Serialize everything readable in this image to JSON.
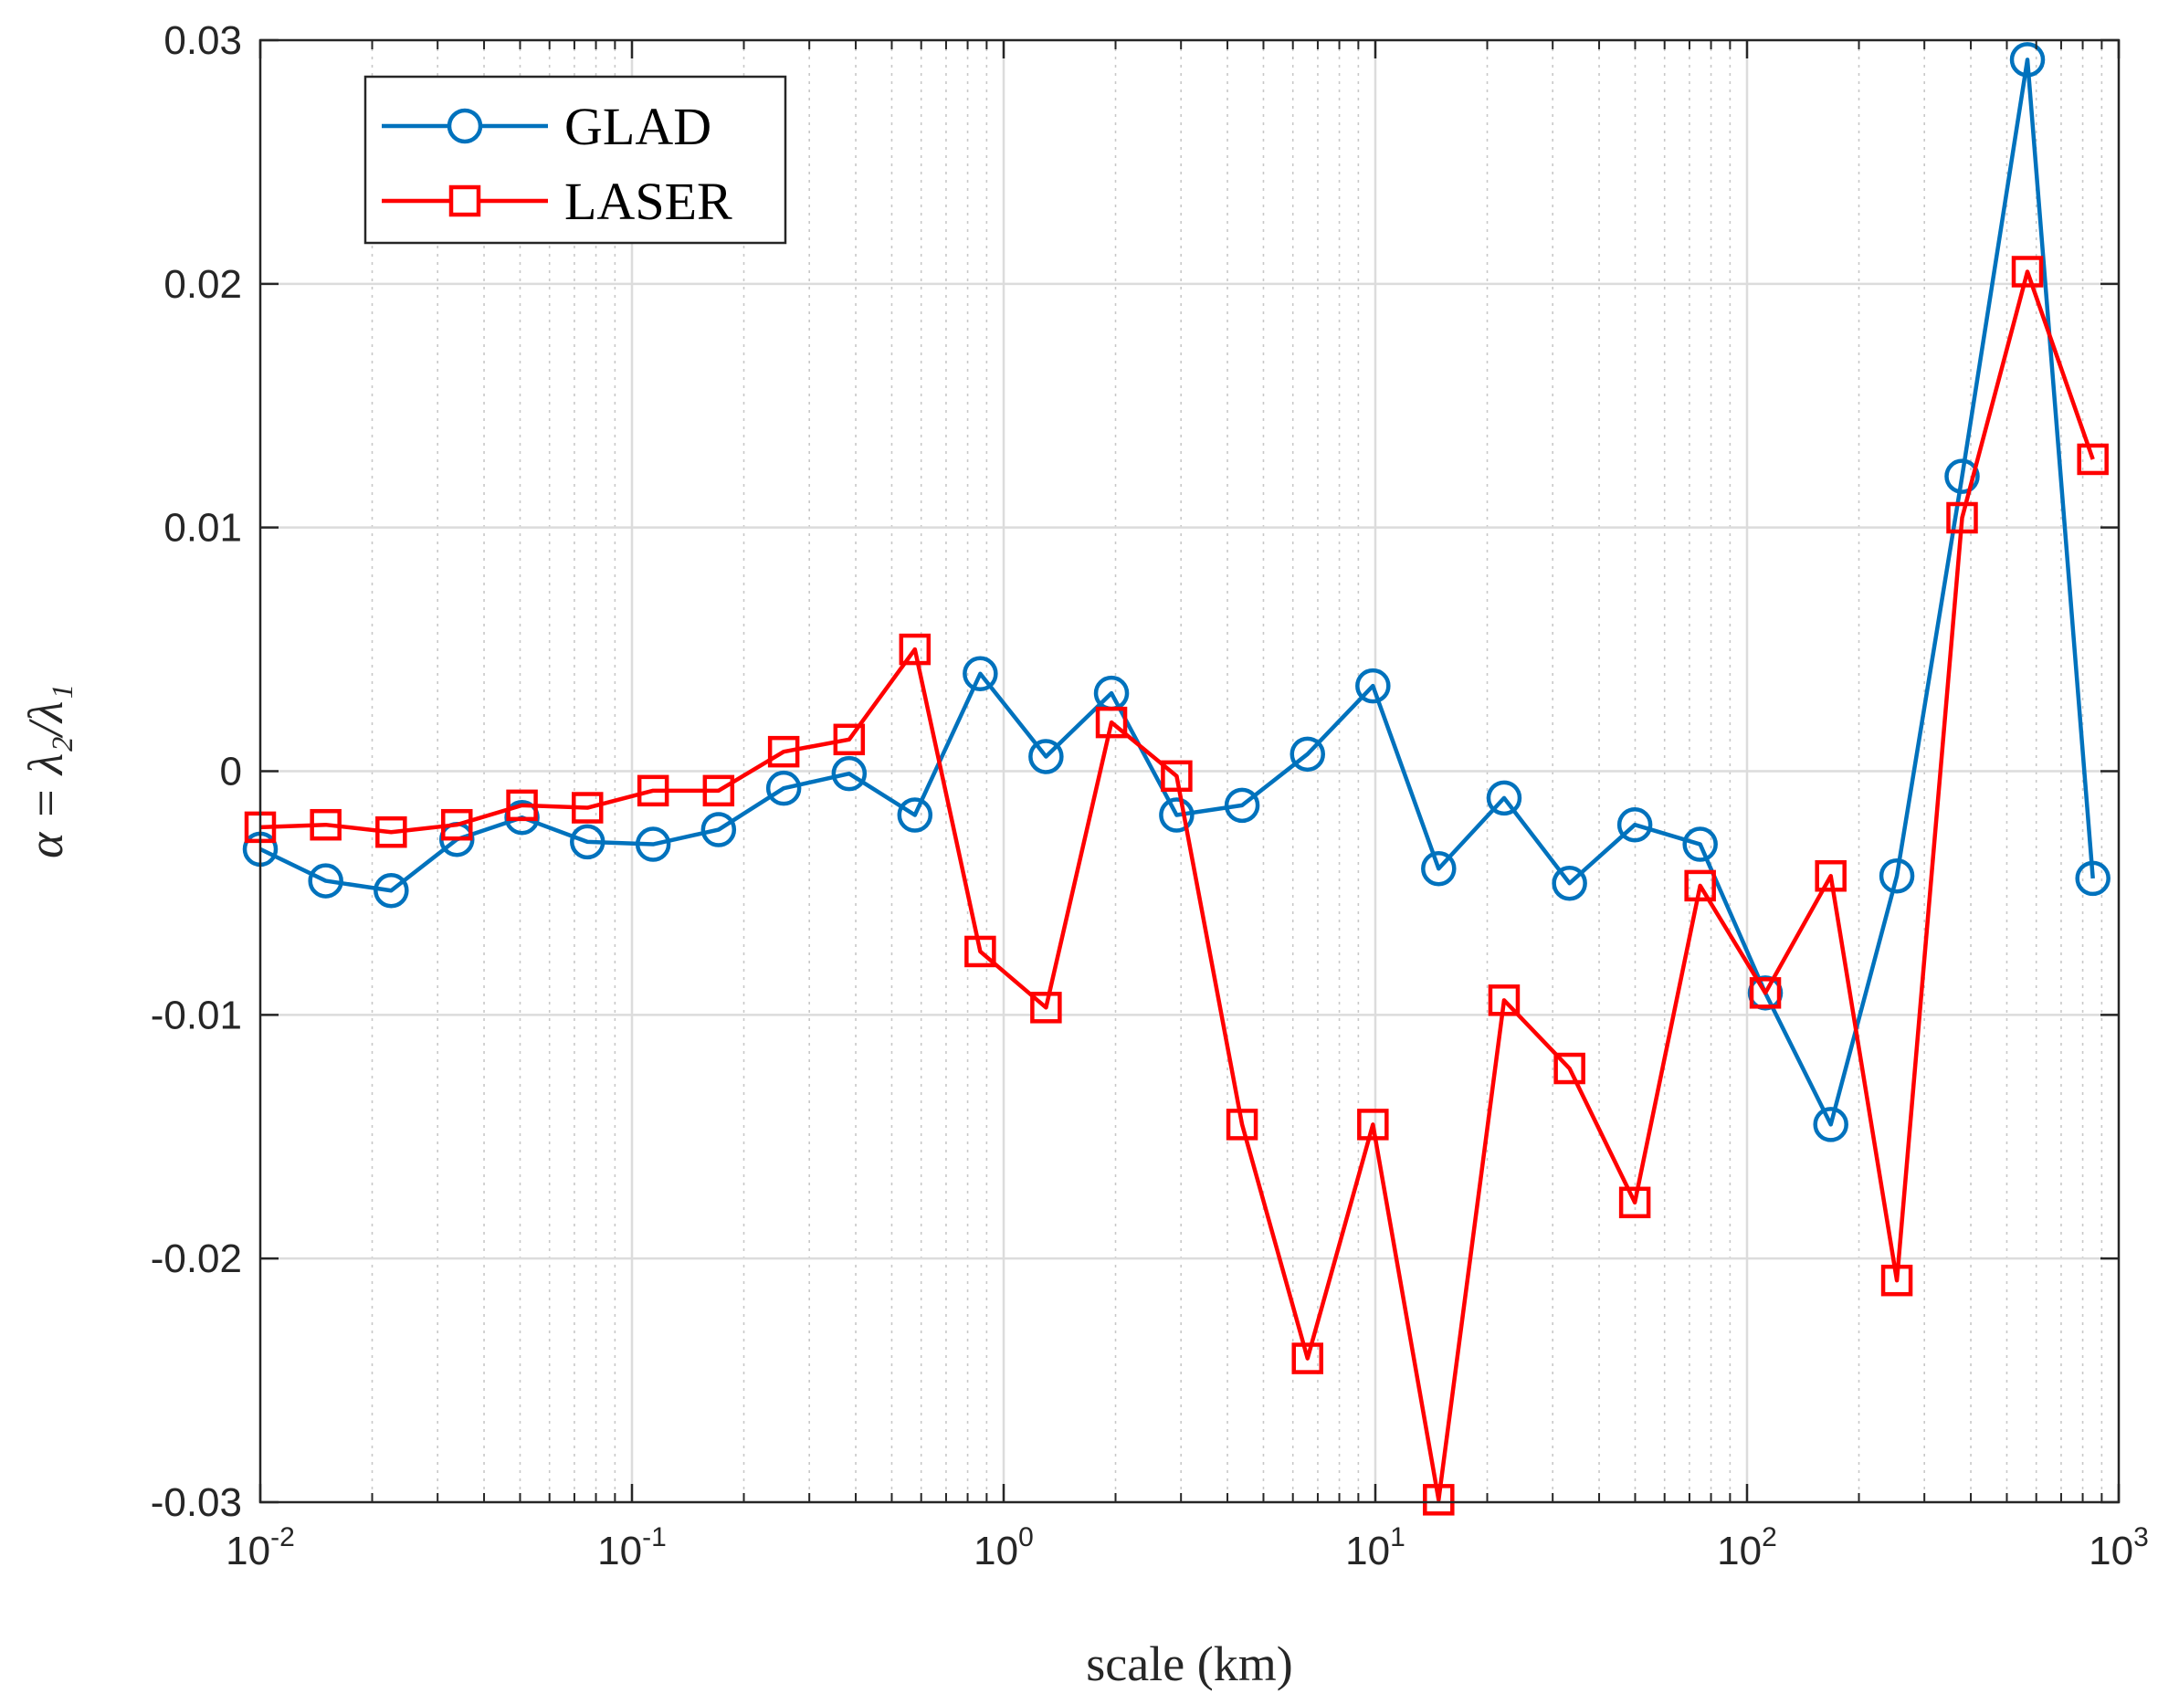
{
  "chart_data": {
    "type": "line",
    "title": "",
    "xlabel": "scale (km)",
    "ylabel": "α = λ₂/λ₁",
    "x_scale": "log",
    "xlim": [
      0.01,
      1000
    ],
    "ylim": [
      -0.03,
      0.03
    ],
    "x_ticks": [
      {
        "base": "10",
        "exp": "-2",
        "value": 0.01
      },
      {
        "base": "10",
        "exp": "-1",
        "value": 0.1
      },
      {
        "base": "10",
        "exp": "0",
        "value": 1
      },
      {
        "base": "10",
        "exp": "1",
        "value": 10
      },
      {
        "base": "10",
        "exp": "2",
        "value": 100
      },
      {
        "base": "10",
        "exp": "3",
        "value": 1000
      }
    ],
    "y_ticks": [
      {
        "label": "0.03",
        "value": 0.03
      },
      {
        "label": "0.02",
        "value": 0.02
      },
      {
        "label": "0.01",
        "value": 0.01
      },
      {
        "label": "0",
        "value": 0
      },
      {
        "label": "-0.01",
        "value": -0.01
      },
      {
        "label": "-0.02",
        "value": -0.02
      },
      {
        "label": "-0.03",
        "value": -0.03
      }
    ],
    "grid": true,
    "minor_grid_x": true,
    "legend_position": "top-left",
    "x": [
      0.01,
      0.015,
      0.0225,
      0.0338,
      0.0506,
      0.0759,
      0.114,
      0.171,
      0.256,
      0.384,
      0.577,
      0.865,
      1.3,
      1.95,
      2.92,
      4.38,
      6.57,
      9.85,
      14.8,
      22.2,
      33.3,
      49.9,
      74.8,
      112,
      168,
      253,
      379,
      568,
      852
    ],
    "series": [
      {
        "name": "GLAD",
        "color": "#0072BD",
        "marker": "circle",
        "values": [
          -0.0032,
          -0.0045,
          -0.0049,
          -0.0028,
          -0.0019,
          -0.0029,
          -0.003,
          -0.0024,
          -0.0007,
          -0.0001,
          -0.0018,
          0.004,
          0.0006,
          0.0032,
          -0.0018,
          -0.0014,
          0.0007,
          0.0035,
          -0.004,
          -0.0011,
          -0.0046,
          -0.0022,
          -0.003,
          -0.0091,
          -0.0145,
          -0.0043,
          0.0121,
          0.0292,
          -0.0044
        ]
      },
      {
        "name": "LASER",
        "color": "#FF0000",
        "marker": "square",
        "values": [
          -0.0023,
          -0.0022,
          -0.0025,
          -0.0022,
          -0.0014,
          -0.0015,
          -0.0008,
          -0.0008,
          0.0008,
          0.0013,
          0.005,
          -0.0074,
          -0.0097,
          0.002,
          -0.0002,
          -0.0145,
          -0.0241,
          -0.0145,
          -0.0299,
          -0.0094,
          -0.0122,
          -0.0177,
          -0.0047,
          -0.0091,
          -0.0043,
          -0.0209,
          0.0104,
          0.0205,
          0.0128
        ]
      }
    ]
  }
}
